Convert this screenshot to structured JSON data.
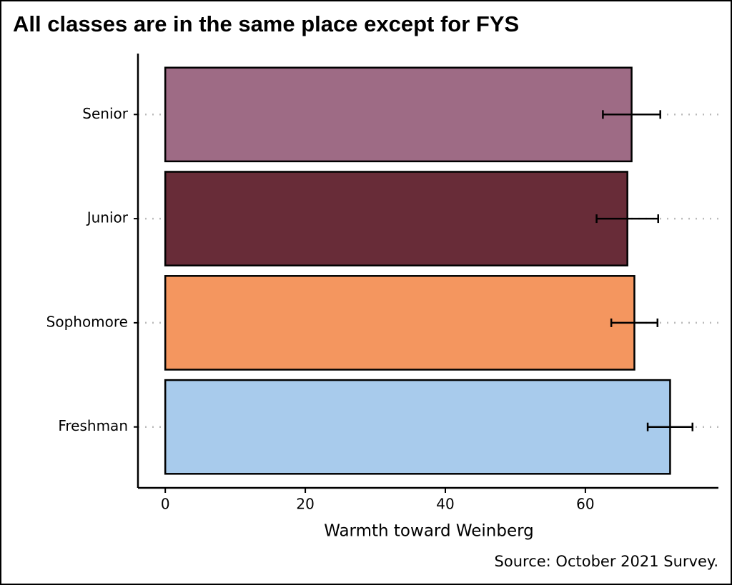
{
  "chart_data": {
    "type": "bar",
    "orientation": "horizontal",
    "title": "All classes are in the same place except for FYS",
    "x_label": "Warmth toward Weinberg",
    "caption": "Source: October 2021 Survey.",
    "categories": [
      "Senior",
      "Junior",
      "Sophomore",
      "Freshman"
    ],
    "values": [
      66.6,
      66.0,
      67.0,
      72.1
    ],
    "errors": [
      4.1,
      4.4,
      3.3,
      3.2
    ],
    "colors": [
      "#9e6b85",
      "#682c38",
      "#f4965f",
      "#a8cbec"
    ],
    "xlim": [
      -3.9,
      79
    ],
    "xticks": [
      0,
      20,
      40,
      60
    ],
    "grid": true
  }
}
